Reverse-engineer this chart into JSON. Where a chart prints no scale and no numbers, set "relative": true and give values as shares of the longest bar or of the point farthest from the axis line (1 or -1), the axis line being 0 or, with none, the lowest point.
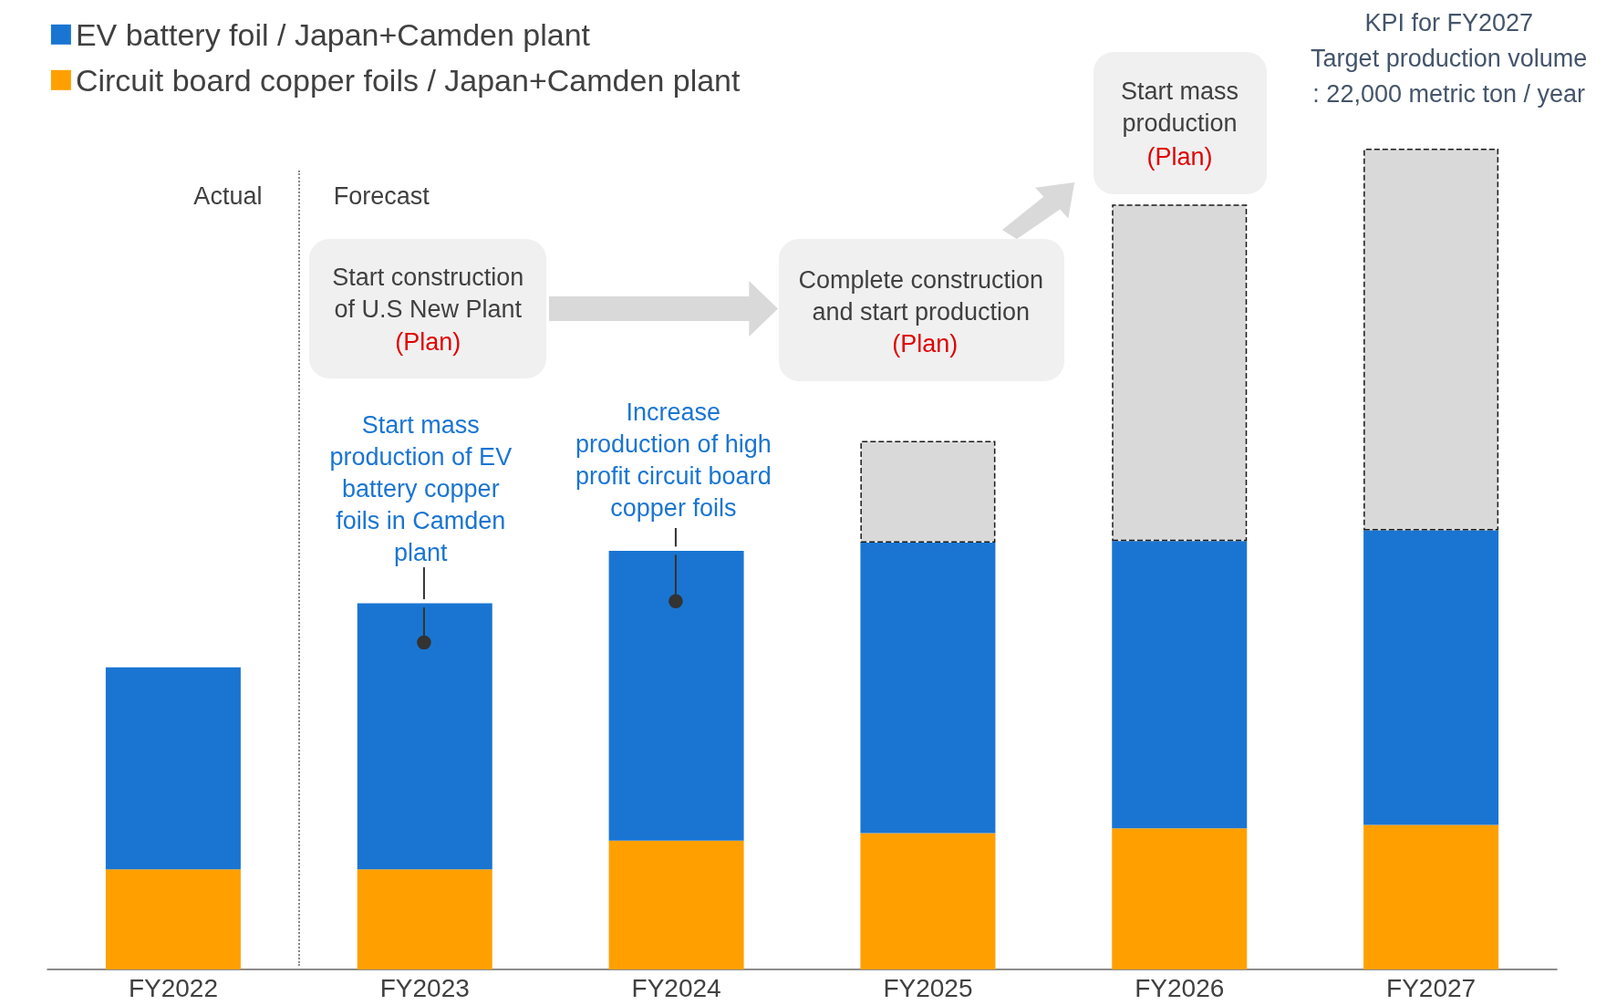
{
  "chart_data": {
    "type": "bar",
    "stacked": true,
    "relative": true,
    "legend": "top left",
    "categories": [
      "FY2022",
      "FY2023",
      "FY2024",
      "FY2025",
      "FY2026",
      "FY2027"
    ],
    "series": [
      {
        "name": "Circuit board copper foils / Japan+Camden plant",
        "color": "#ffa000",
        "values": [
          0.122,
          0.122,
          0.157,
          0.166,
          0.172,
          0.176
        ]
      },
      {
        "name": "EV battery foil / Japan+Camden plant",
        "color": "#1a75d2",
        "values": [
          0.246,
          0.324,
          0.353,
          0.354,
          0.35,
          0.359
        ]
      },
      {
        "color": "#d9d9d9",
        "line_style": "dashed",
        "values": [
          null,
          null,
          null,
          0.124,
          0.41,
          0.465
        ]
      }
    ],
    "annotations": [
      "Actual",
      "Forecast",
      "Start construction of U.S New Plant",
      "(Plan)",
      "Complete construction and start production",
      "(Plan)",
      "Start mass production",
      "(Plan)",
      "KPI for FY2027",
      "Target production volume",
      ": 22,000 metric ton / year",
      "Start mass production of EV battery copper foils in Camden plant",
      "Increase production of high profit circuit board copper foils"
    ]
  }
}
